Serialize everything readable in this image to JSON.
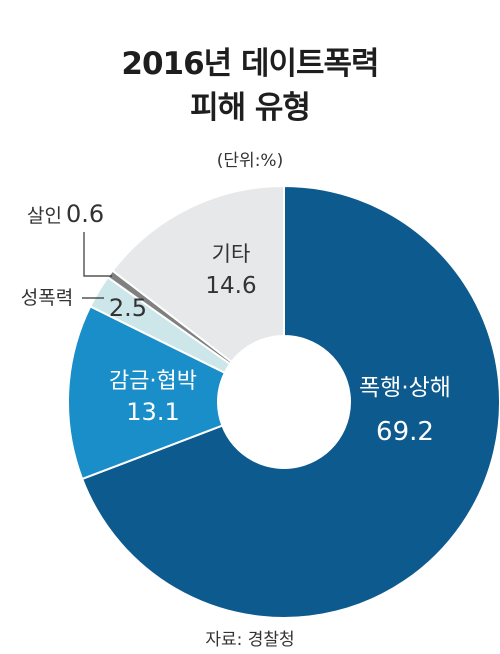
{
  "title_line1": "2016년 데이트폭력",
  "title_line2": "피해 유형",
  "unit": "(단위:%)",
  "source": "자료: 경찰청",
  "chart_data": {
    "type": "pie",
    "title": "2016년 데이트폭력 피해 유형",
    "unit": "%",
    "slices": [
      {
        "label": "폭행·상해",
        "value": 69.2,
        "color": "#0d5a8e",
        "text_color": "#ffffff"
      },
      {
        "label": "감금·협박",
        "value": 13.1,
        "color": "#1a8ec8",
        "text_color": "#ffffff"
      },
      {
        "label": "성폭력",
        "value": 2.5,
        "color": "#cde6ea",
        "text_color": "#333333"
      },
      {
        "label": "살인",
        "value": 0.6,
        "color": "#808080",
        "text_color": "#333333"
      },
      {
        "label": "기타",
        "value": 14.6,
        "color": "#e7e8ea",
        "text_color": "#333333"
      }
    ]
  }
}
